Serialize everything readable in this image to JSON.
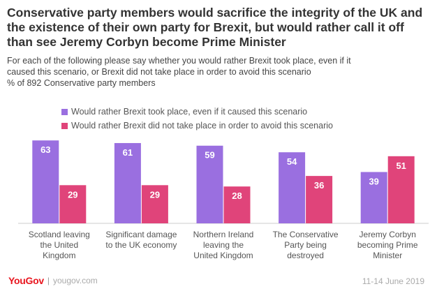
{
  "colors": {
    "series_1": "#9a6fe0",
    "series_2": "#e0447a",
    "axis": "#cccccc",
    "value_label": "#ffffff",
    "category_label": "#555555"
  },
  "title": "Conservative party members would sacrifice the integrity of the UK and the existence of their own party for Brexit, but would rather call it off than see Jeremy Corbyn become Prime Minister",
  "subtitle_lines": [
    "For each of the following please say whether you would rather Brexit took place, even if it",
    "caused this scenario, or Brexit did not take place in order to avoid this scenario",
    "% of 892 Conservative party members"
  ],
  "chart_data": {
    "type": "bar",
    "categories": [
      [
        "Scotland leaving",
        "the United",
        "Kingdom"
      ],
      [
        "Significant damage",
        "to the UK economy"
      ],
      [
        "Northern Ireland",
        "leaving the",
        "United Kingdom"
      ],
      [
        "The Conservative",
        "Party being",
        "destroyed"
      ],
      [
        "Jeremy Corbyn",
        "becoming Prime",
        "Minister"
      ]
    ],
    "series": [
      {
        "name": "Would rather Brexit took place, even if it caused this scenario",
        "values": [
          63,
          61,
          59,
          54,
          39
        ]
      },
      {
        "name": "Would rather Brexit did not take place in order to avoid this scenario",
        "values": [
          29,
          29,
          28,
          36,
          51
        ]
      }
    ],
    "ylim": [
      0,
      70
    ],
    "grid": false,
    "legend_position": "top",
    "value_labels": true
  },
  "footer": {
    "brand": "YouGov",
    "separator": "|",
    "url": "yougov.com",
    "date": "11-14 June 2019"
  }
}
